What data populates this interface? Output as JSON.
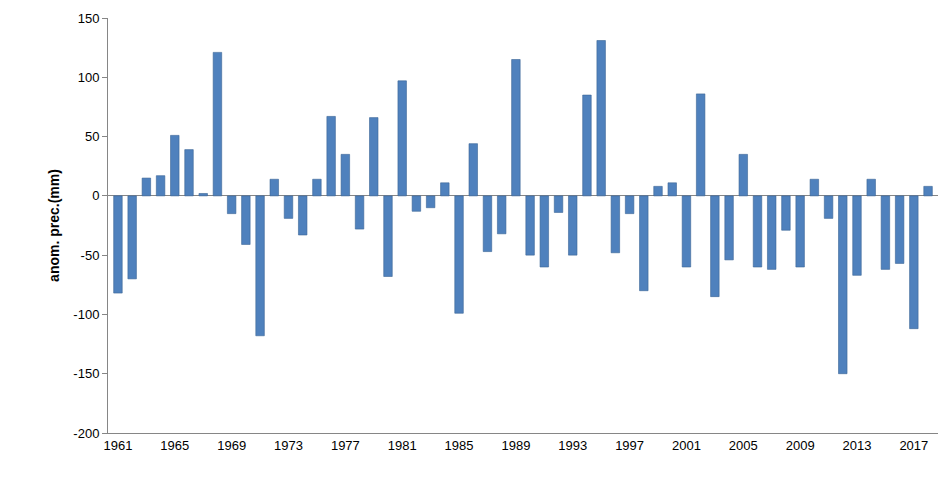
{
  "chart_data": {
    "type": "bar",
    "y_label": "anom. prec.(mm)",
    "x": [
      1961,
      1962,
      1963,
      1964,
      1965,
      1966,
      1967,
      1968,
      1969,
      1970,
      1971,
      1972,
      1973,
      1974,
      1975,
      1976,
      1977,
      1978,
      1979,
      1980,
      1981,
      1982,
      1983,
      1984,
      1985,
      1986,
      1987,
      1988,
      1989,
      1990,
      1991,
      1992,
      1993,
      1994,
      1995,
      1996,
      1997,
      1998,
      1999,
      2000,
      2001,
      2002,
      2003,
      2004,
      2005,
      2006,
      2007,
      2008,
      2009,
      2010,
      2011,
      2012,
      2013,
      2014,
      2015,
      2016,
      2017,
      2018
    ],
    "values": [
      -82,
      -70,
      15,
      17,
      51,
      39,
      2,
      121,
      -15,
      -41,
      -118,
      14,
      -19,
      -33,
      14,
      67,
      35,
      -28,
      66,
      -68,
      97,
      -13,
      -10,
      11,
      -99,
      44,
      -47,
      -32,
      115,
      -50,
      -60,
      -14,
      -50,
      85,
      131,
      -48,
      -15,
      -80,
      8,
      11,
      -60,
      86,
      -85,
      -54,
      35,
      -60,
      -62,
      -29,
      -60,
      14,
      -19,
      -150,
      -67,
      14,
      -62,
      -57,
      -112,
      8
    ],
    "color": "#4f81bd",
    "xlim": [
      1960.3,
      2018.7
    ],
    "xticks": [
      1961,
      1965,
      1969,
      1973,
      1977,
      1981,
      1985,
      1989,
      1993,
      1997,
      2001,
      2005,
      2009,
      2013,
      2017
    ],
    "ylim": [
      -200,
      150
    ],
    "yticks": [
      -200,
      -150,
      -100,
      -50,
      0,
      50,
      100,
      150
    ],
    "grid": false
  }
}
